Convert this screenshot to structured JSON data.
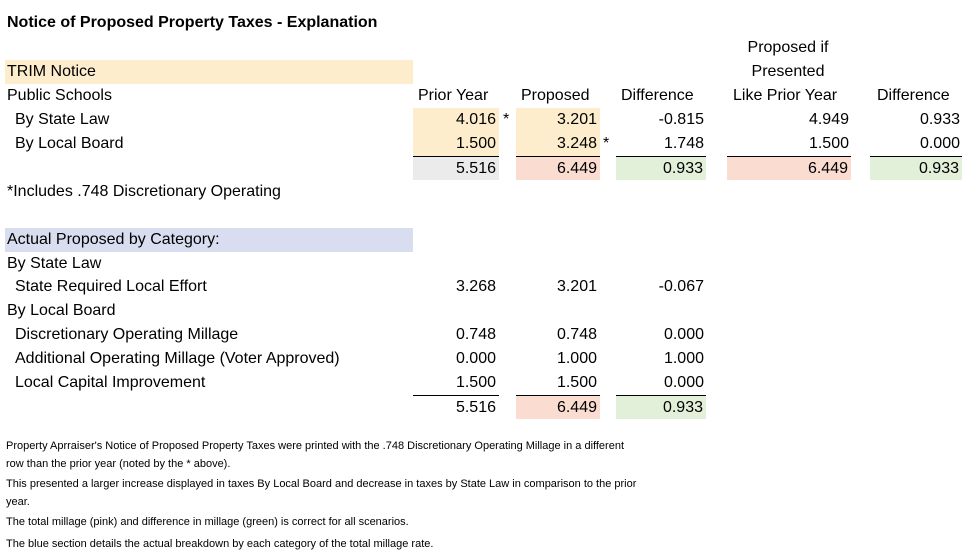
{
  "title": "Notice of Proposed Property Taxes - Explanation",
  "headers": {
    "proposed_if_line1": "Proposed if",
    "proposed_if_line2": "Presented",
    "prior_year": "Prior Year",
    "proposed": "Proposed",
    "difference": "Difference",
    "like_prior_year": "Like Prior Year",
    "difference2": "Difference"
  },
  "trim": {
    "heading": "TRIM Notice",
    "group": "Public Schools",
    "rows": [
      {
        "label": "By State Law",
        "prior": "4.016",
        "prior_mark": "*",
        "proposed": "3.201",
        "proposed_mark": "",
        "diff": "-0.815",
        "like_prior": "4.949",
        "diff2": "0.933"
      },
      {
        "label": "By Local Board",
        "prior": "1.500",
        "prior_mark": "",
        "proposed": "3.248",
        "proposed_mark": "*",
        "diff": "1.748",
        "like_prior": "1.500",
        "diff2": "0.000"
      }
    ],
    "total": {
      "prior": "5.516",
      "proposed": "6.449",
      "diff": "0.933",
      "like_prior": "6.449",
      "diff2": "0.933"
    },
    "footnote": "*Includes .748 Discretionary Operating"
  },
  "actual": {
    "heading": "Actual Proposed by Category:",
    "state_law_label": "By State Law",
    "state_rows": [
      {
        "label": "State Required Local Effort",
        "prior": "3.268",
        "proposed": "3.201",
        "diff": "-0.067"
      }
    ],
    "local_board_label": "By Local Board",
    "local_rows": [
      {
        "label": "Discretionary Operating Millage",
        "prior": "0.748",
        "proposed": "0.748",
        "diff": "0.000"
      },
      {
        "label": "Additional Operating Millage (Voter Approved)",
        "prior": "0.000",
        "proposed": "1.000",
        "diff": "1.000"
      },
      {
        "label": "Local Capital Improvement",
        "prior": "1.500",
        "proposed": "1.500",
        "diff": "0.000"
      }
    ],
    "total": {
      "prior": "5.516",
      "proposed": "6.449",
      "diff": "0.933"
    }
  },
  "notes": {
    "n1a": "Property Aprraiser's Notice of Proposed Property Taxes were printed with the .748 Discretionary Operating Millage in a different",
    "n1b": "row than the prior year  (noted by the * above).",
    "n2a": "This presented a larger increase displayed in taxes By Local Board and decrease in taxes by State Law in comparison to the prior",
    "n2b": "year.",
    "n3": "The total millage (pink) and difference in millage (green) is correct  for all scenarios.",
    "n4": "The blue section details the actual breakdown by each category of the total millage rate."
  },
  "colors": {
    "trim_fill": "#fdedcd",
    "category_fill": "#d8def0",
    "prior_total_fill": "#ebebeb",
    "proposed_total_fill": "#fbdcd0",
    "difference_fill": "#e2efd9"
  }
}
